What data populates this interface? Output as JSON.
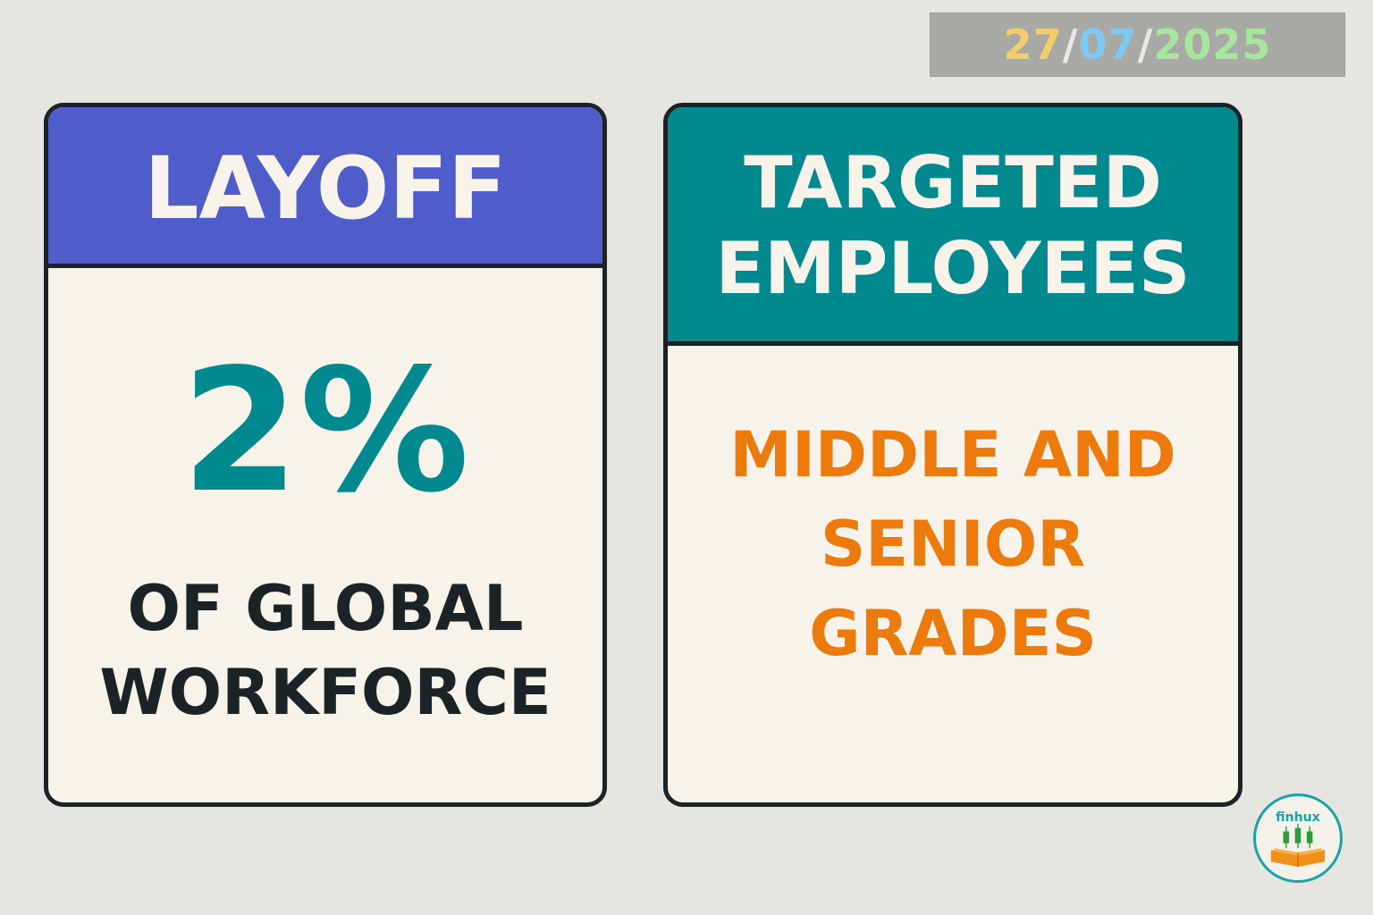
{
  "date": {
    "day": "27",
    "month": "07",
    "year": "2025",
    "separator": "/",
    "colors": {
      "day": "#f2cf6b",
      "month": "#7ec8f5",
      "year": "#a8e6a0"
    }
  },
  "layoff_card": {
    "title": "LAYOFF",
    "value": "2%",
    "subtitle_line1": "OF GLOBAL",
    "subtitle_line2": "WORKFORCE",
    "header_color": "#505cc9"
  },
  "targeted_card": {
    "title_line1": "TARGETED",
    "title_line2": "EMPLOYEES",
    "detail_line1": "MIDDLE AND",
    "detail_line2": "SENIOR",
    "detail_line3": "GRADES",
    "header_color": "#008a8f",
    "detail_color": "#ec7a0c"
  },
  "logo": {
    "text": "finhux",
    "icon": "candlestick-book-icon"
  }
}
